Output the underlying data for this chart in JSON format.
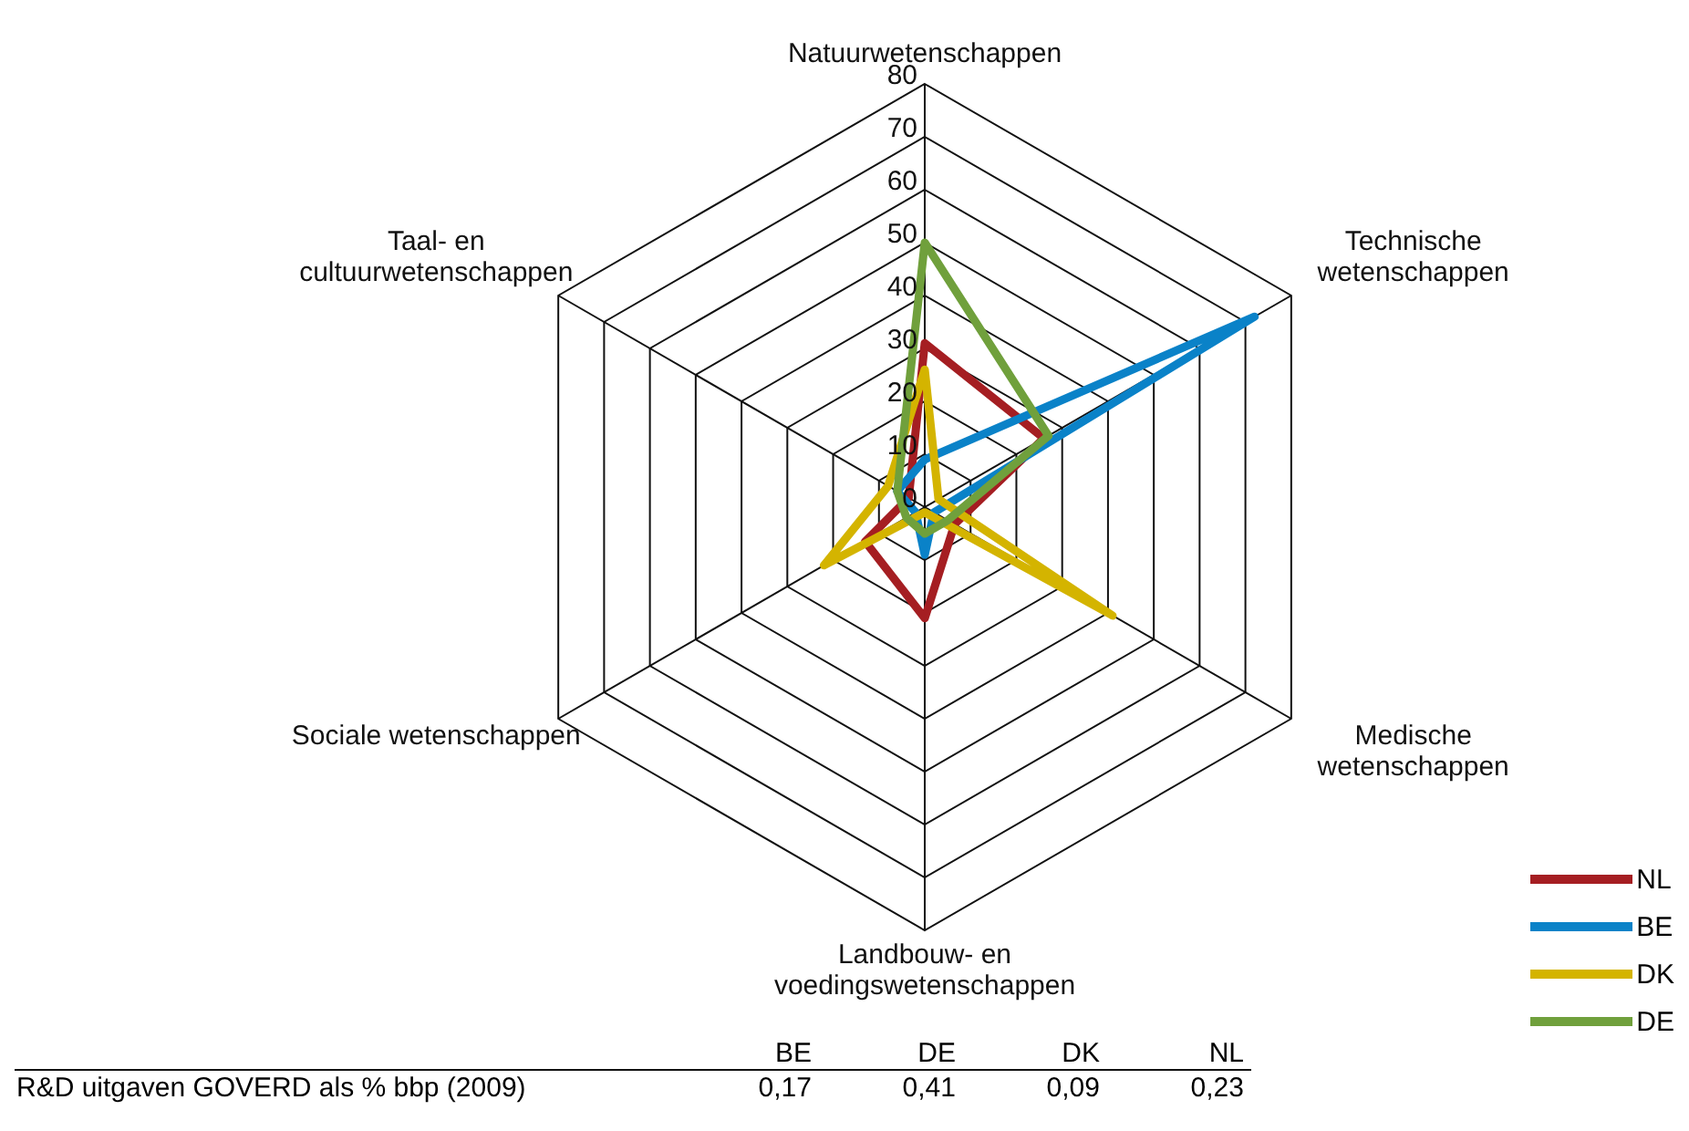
{
  "chart_data": {
    "type": "radar",
    "categories": [
      "Natuurwetenschappen",
      "Technische wetenschappen",
      "Medische wetenschappen",
      "Landbouw- en voedingswetenschappen",
      "Sociale wetenschappen",
      "Taal- en cultuurwetenschappen"
    ],
    "series": [
      {
        "name": "NL",
        "color": "#a51e22",
        "values": [
          31,
          26,
          6.5,
          21,
          13,
          3.5
        ]
      },
      {
        "name": "BE",
        "color": "#0a82c8",
        "values": [
          9,
          72,
          2,
          9,
          2,
          6
        ]
      },
      {
        "name": "DK",
        "color": "#d4b400",
        "values": [
          26,
          3,
          41,
          1,
          22,
          8
        ]
      },
      {
        "name": "DE",
        "color": "#70a03c",
        "values": [
          50,
          27,
          5,
          5,
          4,
          6
        ]
      }
    ],
    "ylim": [
      0,
      80
    ],
    "yticks": [
      0,
      10,
      20,
      30,
      40,
      50,
      60,
      70,
      80
    ],
    "legend": "bottom right",
    "grid": true,
    "annotations": [
      "BE",
      "DE",
      "DK",
      "NL",
      "R&D uitgaven GOVERD als % bbp (2009)",
      "0,17",
      "0,41",
      "0,09",
      "0,23"
    ]
  }
}
